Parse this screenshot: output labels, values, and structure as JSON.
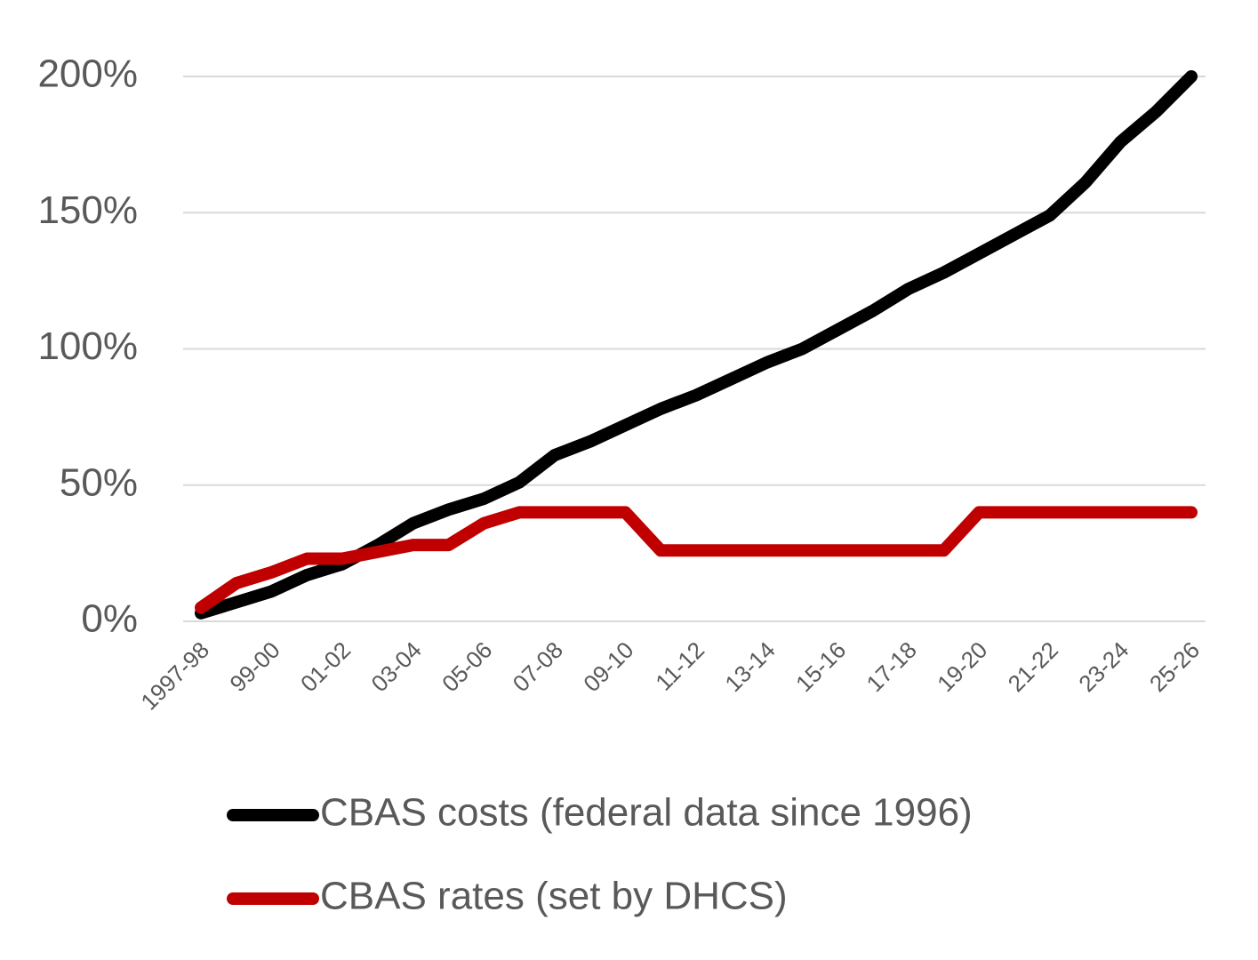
{
  "chart_data": {
    "type": "line",
    "categories": [
      "1997-98",
      null,
      "99-00",
      null,
      "01-02",
      null,
      "03-04",
      null,
      "05-06",
      null,
      "07-08",
      null,
      "09-10",
      null,
      "11-12",
      null,
      "13-14",
      null,
      "15-16",
      null,
      "17-18",
      null,
      "19-20",
      null,
      "21-22",
      null,
      "23-24",
      null,
      "25-26"
    ],
    "series": [
      {
        "name": "CBAS costs (federal data since 1996)",
        "color": "#000000",
        "values": [
          3,
          7,
          11,
          17,
          21,
          28,
          36,
          41,
          45,
          51,
          61,
          66,
          72,
          78,
          83,
          89,
          95,
          100,
          107,
          114,
          122,
          128,
          135,
          142,
          149,
          161,
          176,
          187,
          200
        ]
      },
      {
        "name": "CBAS rates (set by DHCS)",
        "color": "#c00000",
        "values": [
          5,
          14,
          18,
          23,
          23,
          25.5,
          28,
          28,
          36,
          40,
          40,
          40,
          40,
          26,
          26,
          26,
          26,
          26,
          26,
          26,
          26,
          26,
          40,
          40,
          40,
          40,
          40,
          40,
          40
        ]
      }
    ],
    "ylim": [
      0,
      200
    ],
    "yticks": [
      {
        "value": 0,
        "label": "0%"
      },
      {
        "value": 50,
        "label": "50%"
      },
      {
        "value": 100,
        "label": "100%"
      },
      {
        "value": 150,
        "label": "150%"
      },
      {
        "value": 200,
        "label": "200%"
      }
    ],
    "grid": true
  }
}
